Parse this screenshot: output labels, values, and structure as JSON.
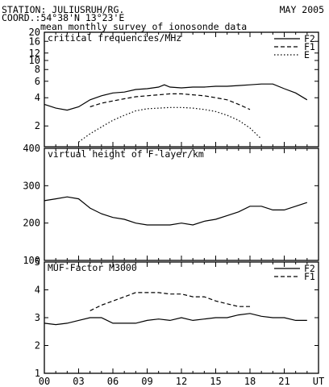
{
  "header": {
    "station": "STATION: JULIUSRUH/RG.",
    "coord": "COORD.:54°38'N 13°23'E",
    "date": "MAY 2005",
    "subtitle": "mean monthly survey of ionosonde data"
  },
  "chart_data": [
    {
      "type": "line",
      "title": "critical frequencies/MHz",
      "y_scale": "log",
      "ylim": [
        1.2,
        20
      ],
      "yticks": [
        2,
        4,
        6,
        8,
        10,
        12,
        16,
        20
      ],
      "xlim": [
        0,
        24
      ],
      "xticks": [
        0,
        3,
        6,
        9,
        12,
        15,
        18,
        21,
        24
      ],
      "xtick_labels": [
        "00",
        "03",
        "06",
        "09",
        "12",
        "15",
        "18",
        "21",
        "UT"
      ],
      "legend_position": "top-right",
      "series": [
        {
          "name": "F2",
          "style": "solid",
          "x": [
            0,
            1,
            2,
            3,
            4,
            5,
            6,
            7,
            8,
            9,
            10,
            10.5,
            11,
            12,
            13,
            14,
            15,
            16,
            17,
            18,
            19,
            20,
            21,
            22,
            23
          ],
          "values": [
            3.4,
            3.1,
            2.95,
            3.2,
            3.8,
            4.2,
            4.5,
            4.6,
            4.9,
            5.0,
            5.2,
            5.5,
            5.2,
            5.1,
            5.2,
            5.2,
            5.3,
            5.3,
            5.4,
            5.5,
            5.6,
            5.6,
            5.0,
            4.5,
            3.8
          ]
        },
        {
          "name": "F1",
          "style": "dashed",
          "x": [
            4,
            5,
            6,
            7,
            8,
            9,
            10,
            11,
            12,
            13,
            14,
            15,
            16,
            17,
            18
          ],
          "values": [
            3.2,
            3.5,
            3.7,
            3.9,
            4.1,
            4.2,
            4.3,
            4.4,
            4.4,
            4.3,
            4.2,
            4.0,
            3.8,
            3.4,
            3.0
          ]
        },
        {
          "name": "E",
          "style": "dotted",
          "x": [
            3,
            4,
            5,
            6,
            7,
            8,
            9,
            10,
            11,
            12,
            13,
            14,
            15,
            16,
            17,
            18,
            19
          ],
          "values": [
            1.35,
            1.65,
            1.95,
            2.3,
            2.6,
            2.9,
            3.05,
            3.1,
            3.15,
            3.15,
            3.1,
            3.0,
            2.85,
            2.6,
            2.3,
            1.9,
            1.45
          ]
        }
      ]
    },
    {
      "type": "line",
      "title": "virtual height of F-layer/km",
      "ylim": [
        100,
        400
      ],
      "yticks": [
        100,
        200,
        300,
        400
      ],
      "xlim": [
        0,
        24
      ],
      "series": [
        {
          "name": "",
          "style": "solid",
          "x": [
            0,
            1,
            2,
            3,
            4,
            5,
            6,
            7,
            8,
            9,
            10,
            11,
            12,
            13,
            14,
            15,
            16,
            17,
            18,
            19,
            20,
            21,
            22,
            23
          ],
          "values": [
            260,
            265,
            270,
            265,
            240,
            225,
            215,
            210,
            200,
            195,
            195,
            195,
            200,
            195,
            205,
            210,
            220,
            230,
            245,
            245,
            235,
            235,
            245,
            255
          ]
        }
      ]
    },
    {
      "type": "line",
      "title": "MUF-Factor M3000",
      "ylim": [
        1,
        5
      ],
      "yticks": [
        1,
        2,
        3,
        4,
        5
      ],
      "xlim": [
        0,
        24
      ],
      "legend_position": "top-right",
      "series": [
        {
          "name": "F2",
          "style": "solid",
          "x": [
            0,
            1,
            2,
            3,
            4,
            5,
            6,
            7,
            8,
            9,
            10,
            11,
            12,
            13,
            14,
            15,
            16,
            17,
            18,
            19,
            20,
            21,
            22,
            23
          ],
          "values": [
            2.8,
            2.75,
            2.8,
            2.9,
            3.0,
            3.0,
            2.8,
            2.8,
            2.8,
            2.9,
            2.95,
            2.9,
            3.0,
            2.9,
            2.95,
            3.0,
            3.0,
            3.1,
            3.15,
            3.05,
            3.0,
            3.0,
            2.9,
            2.9
          ]
        },
        {
          "name": "F1",
          "style": "dashed",
          "x": [
            4,
            5,
            6,
            7,
            8,
            9,
            10,
            11,
            12,
            13,
            14,
            15,
            16,
            17,
            18
          ],
          "values": [
            3.25,
            3.45,
            3.6,
            3.75,
            3.9,
            3.9,
            3.9,
            3.85,
            3.85,
            3.75,
            3.75,
            3.6,
            3.5,
            3.4,
            3.4
          ]
        }
      ]
    }
  ]
}
